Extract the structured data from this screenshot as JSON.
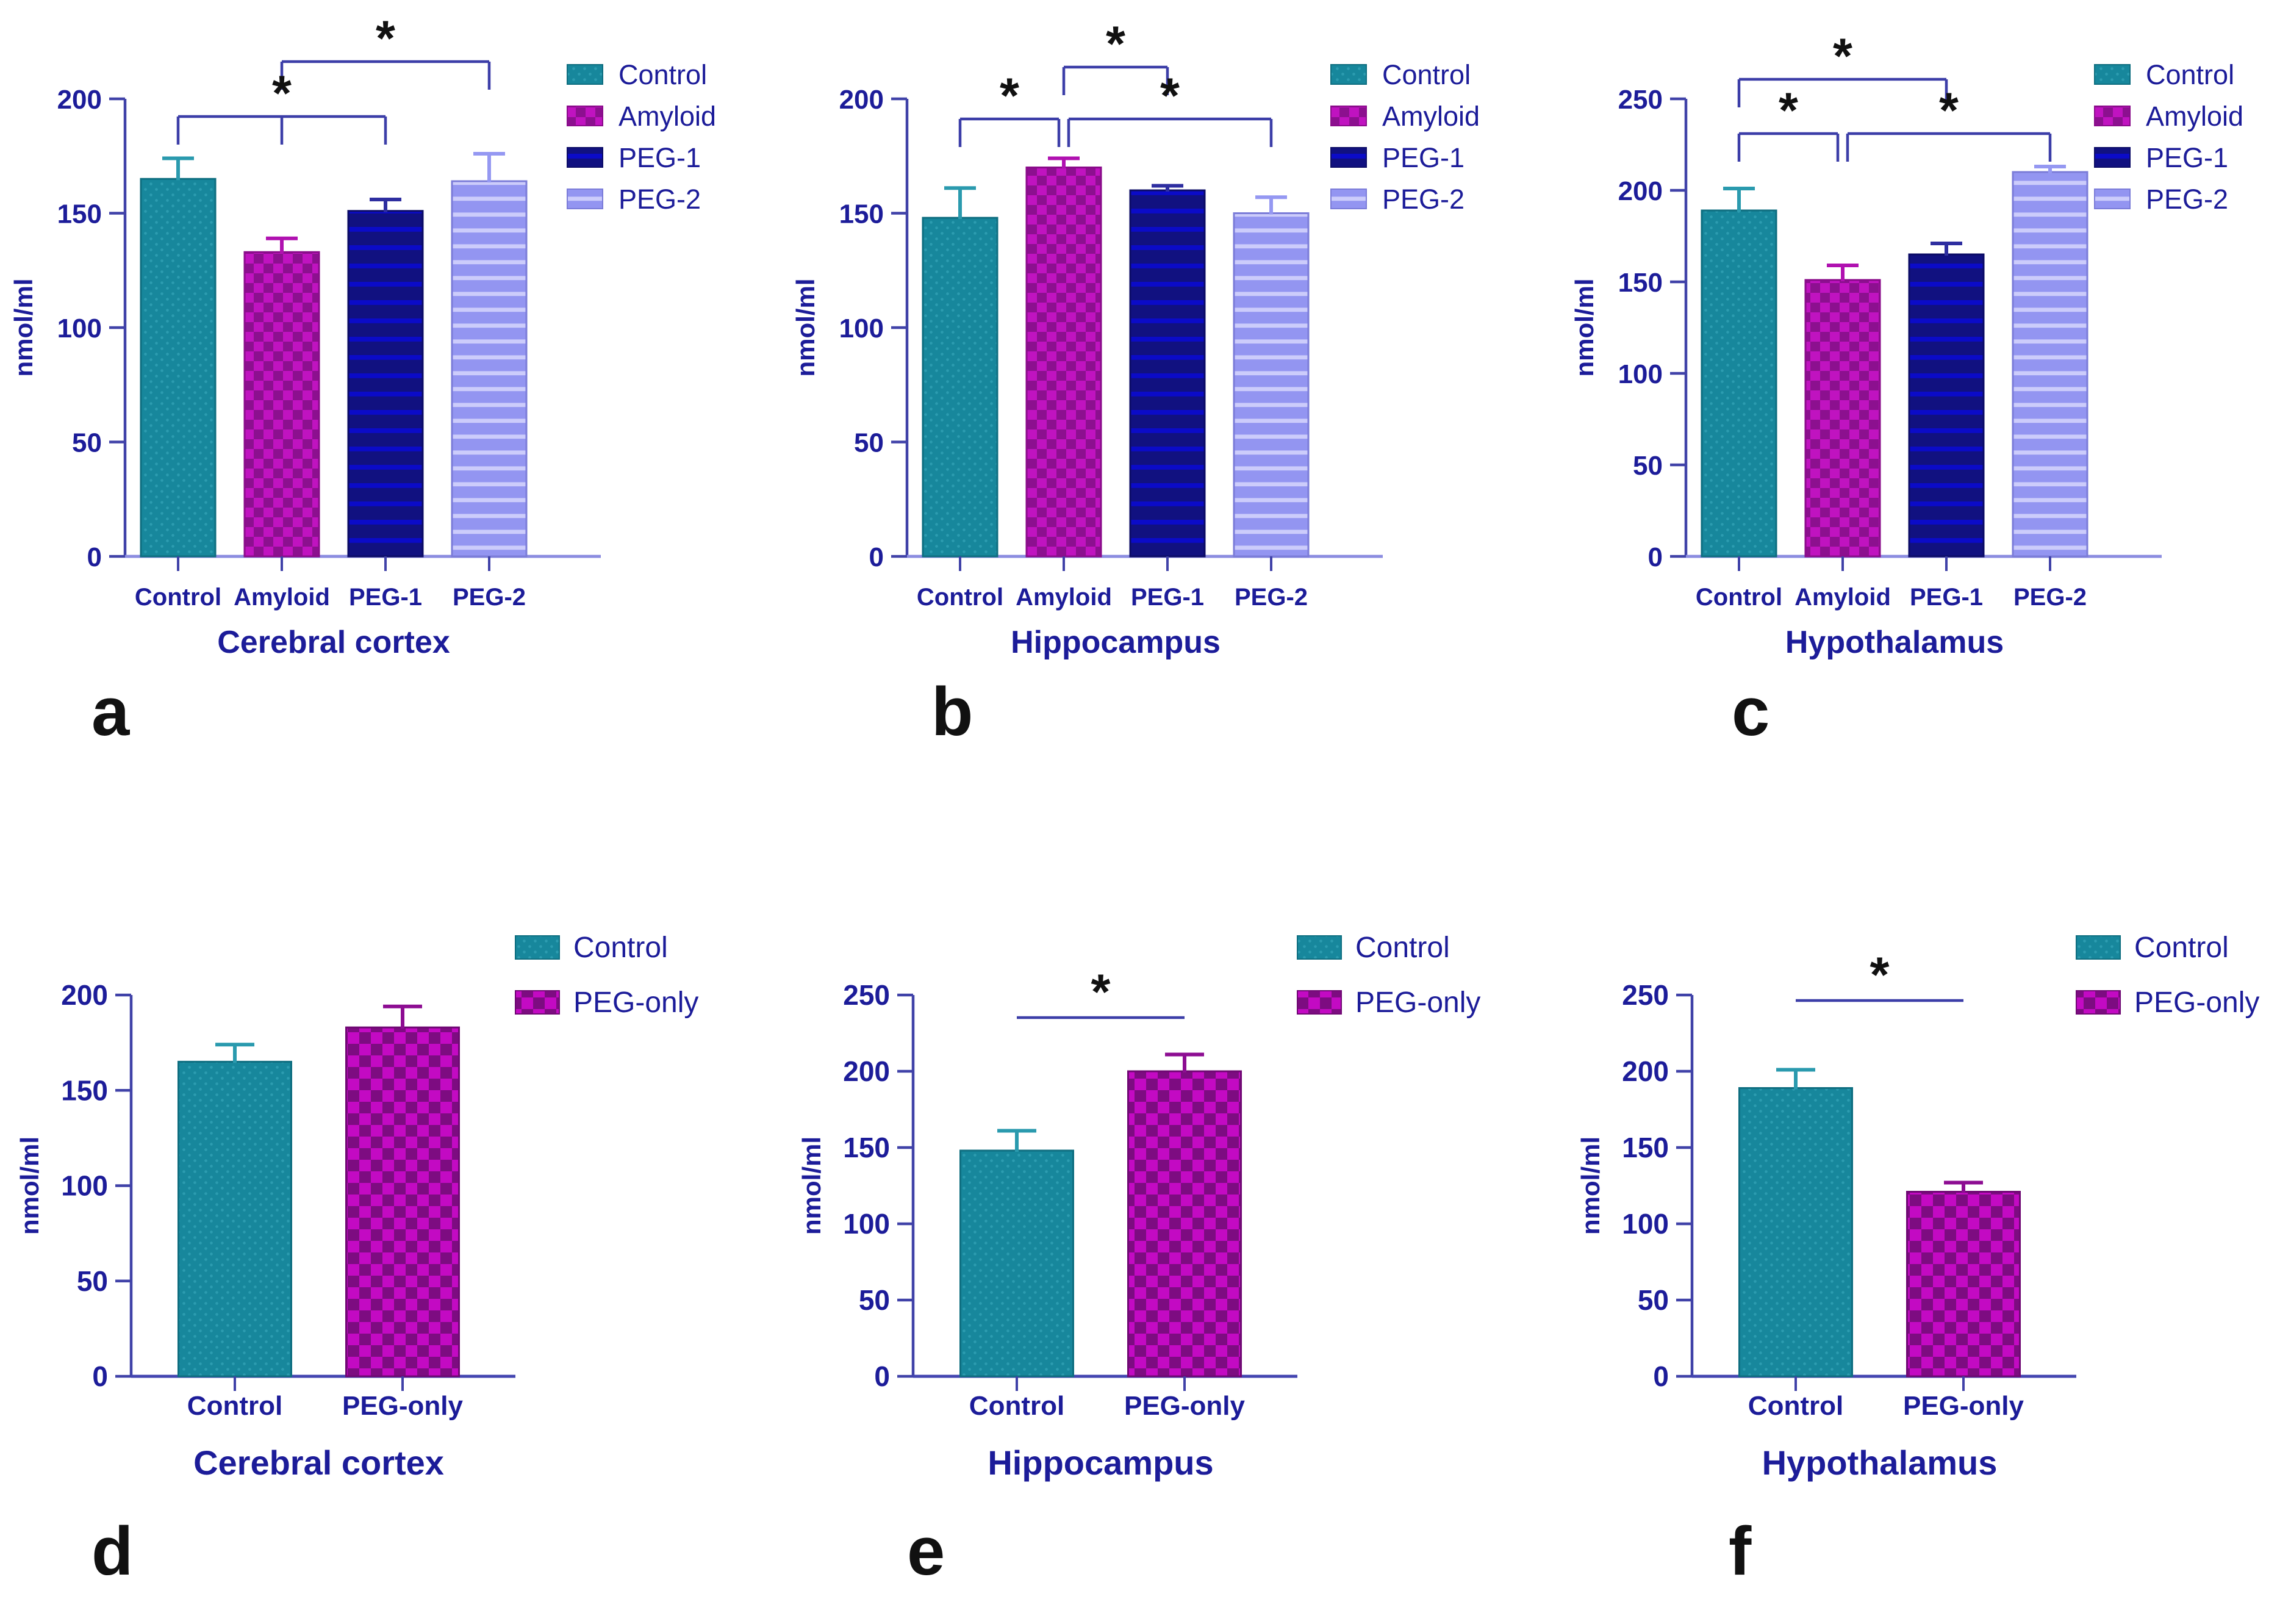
{
  "figure": {
    "ylabel": "nmol/ml",
    "colors": {
      "axis_y": "#4042a8",
      "axis_x_top": "#8b8ce0",
      "axis_x_bottom": "#4345b0",
      "text": "#1c1c99",
      "bracket": "#3c3ea8",
      "star": "#111111",
      "panel_letter": "#111111"
    },
    "styles": {
      "control": {
        "base": "#17879c",
        "accent": "#2c9cb0",
        "pattern": "dots",
        "tile": 18,
        "edge": "#0e6e80",
        "err": "#2a9aae"
      },
      "amyloid": {
        "base": "#c013c0",
        "accent": "#8c108f",
        "pattern": "checker",
        "tile": 32,
        "edge": "#8a0b8a",
        "err": "#b011b0"
      },
      "peg1": {
        "base": "#111180",
        "accent": "#0b0bc8",
        "pattern": "hstripe",
        "tile": 30,
        "edge": "#0c0c66",
        "err": "#2e2ea0"
      },
      "peg2": {
        "base": "#9395f1",
        "accent": "#ccccfb",
        "pattern": "hstripe",
        "tile": 26,
        "edge": "#7b7cd8",
        "err": "#9598f2"
      },
      "pegonly": {
        "base": "#c30ac3",
        "accent": "#7d0c81",
        "pattern": "checker",
        "tile": 38,
        "edge": "#6f0873",
        "err": "#8d0d92"
      }
    }
  },
  "chart_data": [
    {
      "type": "bar",
      "panel_letter": "a",
      "title": "Cerebral cortex",
      "ylabel": "nmol/ml",
      "ylim": [
        0,
        200
      ],
      "yticks": [
        0,
        50,
        100,
        150,
        200
      ],
      "categories": [
        "Control",
        "Amyloid",
        "PEG-1",
        "PEG-2"
      ],
      "values": [
        165,
        133,
        151,
        164
      ],
      "errors_plus": [
        9,
        6,
        5,
        12
      ],
      "bar_styles": [
        "control",
        "amyloid",
        "peg1",
        "peg2"
      ],
      "legend": [
        {
          "label": "Control",
          "style": "control"
        },
        {
          "label": "Amyloid",
          "style": "amyloid"
        },
        {
          "label": "PEG-1",
          "style": "peg1"
        },
        {
          "label": "PEG-2",
          "style": "peg2"
        }
      ],
      "legend_position": "top-right",
      "significance": [
        {
          "from": "Amyloid",
          "to": "PEG-2",
          "label": "*",
          "tier": "upper"
        },
        {
          "from": "Control",
          "to": "PEG-1",
          "label": "*",
          "tier": "lower",
          "mid_tick": "Amyloid"
        }
      ]
    },
    {
      "type": "bar",
      "panel_letter": "b",
      "title": "Hippocampus",
      "ylabel": "nmol/ml",
      "ylim": [
        0,
        200
      ],
      "yticks": [
        0,
        50,
        100,
        150,
        200
      ],
      "categories": [
        "Control",
        "Amyloid",
        "PEG-1",
        "PEG-2"
      ],
      "values": [
        148,
        170,
        160,
        150
      ],
      "errors_plus": [
        13,
        4,
        2,
        7
      ],
      "bar_styles": [
        "control",
        "amyloid",
        "peg1",
        "peg2"
      ],
      "legend": [
        {
          "label": "Control",
          "style": "control"
        },
        {
          "label": "Amyloid",
          "style": "amyloid"
        },
        {
          "label": "PEG-1",
          "style": "peg1"
        },
        {
          "label": "PEG-2",
          "style": "peg2"
        }
      ],
      "legend_position": "top-right",
      "significance": [
        {
          "from": "Amyloid",
          "to": "PEG-1",
          "label": "*",
          "tier": "upper"
        },
        {
          "from": "Control",
          "to": "Amyloid",
          "label": "*",
          "tier": "lower"
        },
        {
          "from": "Amyloid",
          "to": "PEG-2",
          "label": "*",
          "tier": "lower"
        }
      ]
    },
    {
      "type": "bar",
      "panel_letter": "c",
      "title": "Hypothalamus",
      "ylabel": "nmol/ml",
      "ylim": [
        0,
        250
      ],
      "yticks": [
        0,
        50,
        100,
        150,
        200,
        250
      ],
      "categories": [
        "Control",
        "Amyloid",
        "PEG-1",
        "PEG-2"
      ],
      "values": [
        189,
        151,
        165,
        210
      ],
      "errors_plus": [
        12,
        8,
        6,
        3
      ],
      "bar_styles": [
        "control",
        "amyloid",
        "peg1",
        "peg2"
      ],
      "legend": [
        {
          "label": "Control",
          "style": "control"
        },
        {
          "label": "Amyloid",
          "style": "amyloid"
        },
        {
          "label": "PEG-1",
          "style": "peg1"
        },
        {
          "label": "PEG-2",
          "style": "peg2"
        }
      ],
      "legend_position": "top-right",
      "significance": [
        {
          "from": "Control",
          "to": "PEG-1",
          "label": "*",
          "tier": "upper"
        },
        {
          "from": "Control",
          "to": "Amyloid",
          "label": "*",
          "tier": "lower"
        },
        {
          "from": "Amyloid",
          "to": "PEG-2",
          "label": "*",
          "tier": "lower"
        }
      ]
    },
    {
      "type": "bar",
      "panel_letter": "d",
      "title": "Cerebral cortex",
      "ylabel": "nmol/ml",
      "ylim": [
        0,
        200
      ],
      "yticks": [
        0,
        50,
        100,
        150,
        200
      ],
      "categories": [
        "Control",
        "PEG-only"
      ],
      "values": [
        165,
        183
      ],
      "errors_plus": [
        9,
        11
      ],
      "bar_styles": [
        "control",
        "pegonly"
      ],
      "legend": [
        {
          "label": "Control",
          "style": "control"
        },
        {
          "label": "PEG-only",
          "style": "pegonly"
        }
      ],
      "legend_position": "top-right",
      "significance": []
    },
    {
      "type": "bar",
      "panel_letter": "e",
      "title": "Hippocampus",
      "ylabel": "nmol/ml",
      "ylim": [
        0,
        250
      ],
      "yticks": [
        0,
        50,
        100,
        150,
        200,
        250
      ],
      "categories": [
        "Control",
        "PEG-only"
      ],
      "values": [
        148,
        200
      ],
      "errors_plus": [
        13,
        11
      ],
      "bar_styles": [
        "control",
        "pegonly"
      ],
      "legend": [
        {
          "label": "Control",
          "style": "control"
        },
        {
          "label": "PEG-only",
          "style": "pegonly"
        }
      ],
      "legend_position": "top-right",
      "significance": [
        {
          "from": "Control",
          "to": "PEG-only",
          "label": "*",
          "tier": "line"
        }
      ]
    },
    {
      "type": "bar",
      "panel_letter": "f",
      "title": "Hypothalamus",
      "ylabel": "nmol/ml",
      "ylim": [
        0,
        250
      ],
      "yticks": [
        0,
        50,
        100,
        150,
        200,
        250
      ],
      "categories": [
        "Control",
        "PEG-only"
      ],
      "values": [
        189,
        121
      ],
      "errors_plus": [
        12,
        6
      ],
      "bar_styles": [
        "control",
        "pegonly"
      ],
      "legend": [
        {
          "label": "Control",
          "style": "control"
        },
        {
          "label": "PEG-only",
          "style": "pegonly"
        }
      ],
      "legend_position": "top-right",
      "significance": [
        {
          "from": "Control",
          "to": "PEG-only",
          "label": "*",
          "tier": "line"
        }
      ]
    }
  ]
}
